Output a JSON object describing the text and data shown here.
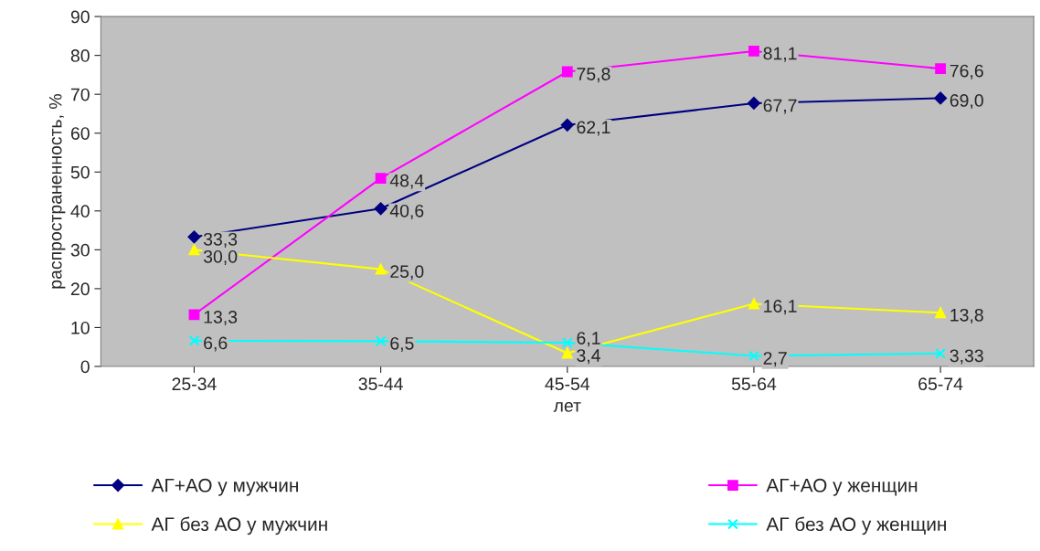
{
  "chart_data": {
    "type": "line",
    "xlabel": "лет",
    "ylabel": "распространенность, %",
    "categories": [
      "25-34",
      "35-44",
      "45-54",
      "55-64",
      "65-74"
    ],
    "ylim": [
      0,
      90
    ],
    "yticks": [
      0,
      10,
      20,
      30,
      40,
      50,
      60,
      70,
      80,
      90
    ],
    "grid": false,
    "legend": "bottom",
    "series": [
      {
        "name": "АГ+АО у мужчин",
        "color": "#000080",
        "marker": "diamond",
        "values": [
          33.3,
          40.6,
          62.1,
          67.7,
          69.0
        ],
        "value_labels": [
          "33,3",
          "40,6",
          "62,1",
          "67,7",
          "69,0"
        ]
      },
      {
        "name": "АГ+АО у женщин",
        "color": "#ff00ff",
        "marker": "square",
        "values": [
          13.3,
          48.4,
          75.8,
          81.1,
          76.6
        ],
        "value_labels": [
          "13,3",
          "48,4",
          "75,8",
          "81,1",
          "76,6"
        ]
      },
      {
        "name": "АГ без АО у мужчин",
        "color": "#ffff00",
        "marker": "triangle",
        "values": [
          30.0,
          25.0,
          3.4,
          16.1,
          13.8
        ],
        "value_labels": [
          "30,0",
          "25,0",
          "3,4",
          "16,1",
          "13,8"
        ]
      },
      {
        "name": "АГ без АО у женщин",
        "color": "#00ffff",
        "marker": "cross",
        "values": [
          6.6,
          6.5,
          6.1,
          2.7,
          3.33
        ],
        "value_labels": [
          "6,6",
          "6,5",
          "6,1",
          "2,7",
          "3,33"
        ]
      }
    ]
  }
}
